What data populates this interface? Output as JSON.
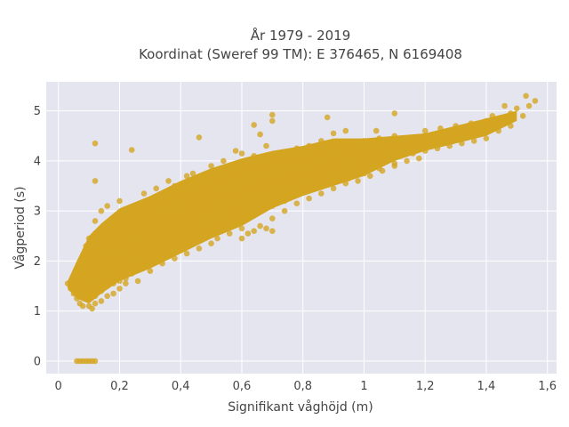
{
  "chart_data": {
    "type": "scatter",
    "title_line1": "År 1979 - 2019",
    "title_line2": "Koordinat (Sweref 99 TM): E 376465, N 6169408",
    "xlabel": "Signifikant våghöjd (m)",
    "ylabel": "Vågperiod (s)",
    "xlim": [
      -0.04,
      1.63
    ],
    "ylim": [
      -0.25,
      5.58
    ],
    "x_ticks": [
      0,
      0.2,
      0.4,
      0.6,
      0.8,
      1,
      1.2,
      1.4,
      1.6
    ],
    "x_tick_labels": [
      "0",
      "0,2",
      "0,4",
      "0,6",
      "0,8",
      "1",
      "1,2",
      "1,4",
      "1,6"
    ],
    "y_ticks": [
      0,
      1,
      2,
      3,
      4,
      5
    ],
    "y_tick_labels": [
      "0",
      "1",
      "2",
      "3",
      "4",
      "5"
    ],
    "grid": true,
    "colors": {
      "marker": "#d4a520",
      "plot_bg": "#e5e5f0",
      "grid": "#ffffff",
      "text": "#444444"
    },
    "points": [
      [
        0.06,
        0.0
      ],
      [
        0.07,
        0.0
      ],
      [
        0.08,
        0.0
      ],
      [
        0.09,
        0.0
      ],
      [
        0.1,
        0.0
      ],
      [
        0.11,
        0.0
      ],
      [
        0.12,
        0.0
      ],
      [
        0.03,
        1.55
      ],
      [
        0.04,
        1.45
      ],
      [
        0.05,
        1.35
      ],
      [
        0.06,
        1.25
      ],
      [
        0.07,
        1.15
      ],
      [
        0.08,
        1.1
      ],
      [
        0.1,
        1.1
      ],
      [
        0.11,
        1.05
      ],
      [
        0.05,
        1.6
      ],
      [
        0.06,
        1.8
      ],
      [
        0.07,
        1.95
      ],
      [
        0.08,
        2.1
      ],
      [
        0.09,
        2.3
      ],
      [
        0.1,
        2.45
      ],
      [
        0.12,
        2.55
      ],
      [
        0.14,
        2.6
      ],
      [
        0.08,
        1.5
      ],
      [
        0.1,
        1.4
      ],
      [
        0.12,
        1.3
      ],
      [
        0.14,
        1.4
      ],
      [
        0.16,
        1.5
      ],
      [
        0.18,
        1.55
      ],
      [
        0.2,
        1.6
      ],
      [
        0.22,
        1.65
      ],
      [
        0.08,
        1.75
      ],
      [
        0.1,
        1.7
      ],
      [
        0.12,
        1.85
      ],
      [
        0.14,
        2.0
      ],
      [
        0.1,
        2.0
      ],
      [
        0.12,
        2.2
      ],
      [
        0.14,
        2.3
      ],
      [
        0.16,
        2.45
      ],
      [
        0.16,
        1.9
      ],
      [
        0.18,
        2.1
      ],
      [
        0.2,
        2.3
      ],
      [
        0.22,
        2.5
      ],
      [
        0.24,
        2.65
      ],
      [
        0.26,
        2.8
      ],
      [
        0.28,
        2.9
      ],
      [
        0.2,
        2.75
      ],
      [
        0.18,
        2.6
      ],
      [
        0.22,
        2.9
      ],
      [
        0.25,
        3.0
      ],
      [
        0.28,
        3.05
      ],
      [
        0.3,
        3.1
      ],
      [
        0.32,
        3.15
      ],
      [
        0.35,
        3.2
      ],
      [
        0.38,
        3.3
      ],
      [
        0.18,
        1.8
      ],
      [
        0.2,
        1.95
      ],
      [
        0.22,
        2.05
      ],
      [
        0.24,
        2.15
      ],
      [
        0.26,
        2.25
      ],
      [
        0.28,
        2.35
      ],
      [
        0.3,
        2.45
      ],
      [
        0.32,
        2.55
      ],
      [
        0.24,
        1.75
      ],
      [
        0.26,
        1.85
      ],
      [
        0.28,
        1.95
      ],
      [
        0.3,
        2.0
      ],
      [
        0.32,
        2.1
      ],
      [
        0.34,
        2.2
      ],
      [
        0.36,
        2.3
      ],
      [
        0.38,
        2.4
      ],
      [
        0.3,
        1.8
      ],
      [
        0.34,
        1.95
      ],
      [
        0.38,
        2.05
      ],
      [
        0.42,
        2.15
      ],
      [
        0.46,
        2.25
      ],
      [
        0.5,
        2.35
      ],
      [
        0.3,
        2.7
      ],
      [
        0.34,
        2.8
      ],
      [
        0.4,
        2.5
      ],
      [
        0.42,
        2.65
      ],
      [
        0.44,
        2.8
      ],
      [
        0.46,
        2.95
      ],
      [
        0.48,
        3.1
      ],
      [
        0.5,
        3.2
      ],
      [
        0.52,
        3.3
      ],
      [
        0.36,
        2.6
      ],
      [
        0.4,
        2.9
      ],
      [
        0.42,
        3.05
      ],
      [
        0.44,
        3.15
      ],
      [
        0.46,
        3.3
      ],
      [
        0.48,
        3.4
      ],
      [
        0.5,
        3.5
      ],
      [
        0.52,
        3.55
      ],
      [
        0.54,
        3.6
      ],
      [
        0.45,
        2.45
      ],
      [
        0.5,
        2.6
      ],
      [
        0.54,
        2.7
      ],
      [
        0.58,
        2.8
      ],
      [
        0.62,
        2.9
      ],
      [
        0.66,
        3.0
      ],
      [
        0.7,
        3.1
      ],
      [
        0.74,
        3.2
      ],
      [
        0.52,
        2.45
      ],
      [
        0.56,
        2.55
      ],
      [
        0.6,
        2.65
      ],
      [
        0.64,
        2.6
      ],
      [
        0.68,
        2.65
      ],
      [
        0.7,
        2.6
      ],
      [
        0.56,
        3.0
      ],
      [
        0.6,
        3.1
      ],
      [
        0.56,
        3.7
      ],
      [
        0.6,
        3.8
      ],
      [
        0.64,
        3.85
      ],
      [
        0.68,
        3.9
      ],
      [
        0.72,
        3.95
      ],
      [
        0.76,
        4.0
      ],
      [
        0.8,
        4.05
      ],
      [
        0.84,
        4.1
      ],
      [
        0.58,
        3.3
      ],
      [
        0.62,
        3.4
      ],
      [
        0.66,
        3.5
      ],
      [
        0.7,
        3.6
      ],
      [
        0.74,
        3.65
      ],
      [
        0.78,
        3.7
      ],
      [
        0.82,
        3.75
      ],
      [
        0.86,
        3.8
      ],
      [
        0.75,
        3.35
      ],
      [
        0.8,
        3.45
      ],
      [
        0.85,
        3.55
      ],
      [
        0.9,
        3.6
      ],
      [
        0.95,
        3.65
      ],
      [
        1.0,
        3.75
      ],
      [
        1.05,
        3.85
      ],
      [
        1.1,
        3.95
      ],
      [
        0.88,
        3.9
      ],
      [
        0.92,
        4.0
      ],
      [
        0.96,
        4.1
      ],
      [
        1.0,
        4.15
      ],
      [
        1.04,
        4.2
      ],
      [
        1.08,
        4.25
      ],
      [
        1.12,
        4.3
      ],
      [
        1.16,
        4.35
      ],
      [
        0.9,
        4.3
      ],
      [
        0.95,
        4.35
      ],
      [
        1.0,
        4.4
      ],
      [
        1.05,
        4.45
      ],
      [
        1.1,
        4.5
      ],
      [
        1.15,
        4.45
      ],
      [
        1.2,
        4.5
      ],
      [
        1.25,
        4.55
      ],
      [
        1.12,
        4.1
      ],
      [
        1.16,
        4.15
      ],
      [
        1.2,
        4.2
      ],
      [
        1.24,
        4.25
      ],
      [
        1.28,
        4.3
      ],
      [
        1.32,
        4.35
      ],
      [
        1.36,
        4.4
      ],
      [
        1.4,
        4.45
      ],
      [
        1.2,
        4.6
      ],
      [
        1.25,
        4.65
      ],
      [
        1.3,
        4.7
      ],
      [
        1.35,
        4.75
      ],
      [
        1.4,
        4.8
      ],
      [
        1.45,
        4.85
      ],
      [
        1.48,
        4.95
      ],
      [
        1.5,
        5.05
      ],
      [
        1.44,
        4.6
      ],
      [
        1.48,
        4.7
      ],
      [
        1.52,
        4.9
      ],
      [
        1.54,
        5.1
      ],
      [
        1.53,
        5.3
      ],
      [
        1.56,
        5.2
      ],
      [
        1.46,
        5.1
      ],
      [
        1.42,
        4.9
      ],
      [
        1.3,
        4.5
      ],
      [
        1.34,
        4.6
      ],
      [
        1.38,
        4.55
      ],
      [
        1.26,
        4.4
      ],
      [
        1.22,
        4.35
      ],
      [
        1.18,
        4.4
      ],
      [
        0.98,
        3.9
      ],
      [
        1.02,
        4.0
      ],
      [
        0.12,
        4.35
      ],
      [
        0.24,
        4.22
      ],
      [
        0.12,
        3.6
      ],
      [
        0.46,
        4.47
      ],
      [
        0.66,
        4.53
      ],
      [
        0.7,
        4.92
      ],
      [
        0.7,
        4.8
      ],
      [
        0.64,
        4.72
      ],
      [
        0.88,
        4.87
      ],
      [
        1.1,
        4.95
      ],
      [
        1.04,
        4.6
      ],
      [
        0.68,
        4.3
      ],
      [
        0.6,
        4.15
      ],
      [
        0.5,
        3.9
      ],
      [
        0.42,
        3.7
      ],
      [
        0.38,
        3.5
      ],
      [
        0.2,
        3.2
      ],
      [
        0.14,
        3.0
      ],
      [
        0.12,
        2.8
      ],
      [
        0.16,
        3.1
      ],
      [
        0.28,
        3.35
      ],
      [
        0.32,
        3.45
      ],
      [
        0.36,
        3.6
      ],
      [
        0.44,
        3.75
      ],
      [
        0.54,
        4.0
      ],
      [
        0.58,
        4.2
      ],
      [
        0.64,
        4.1
      ],
      [
        0.78,
        4.25
      ],
      [
        0.82,
        4.3
      ],
      [
        0.86,
        4.4
      ],
      [
        0.9,
        4.55
      ],
      [
        0.94,
        4.6
      ],
      [
        0.1,
        1.25
      ],
      [
        0.12,
        1.15
      ],
      [
        0.14,
        1.2
      ],
      [
        0.16,
        1.3
      ],
      [
        0.18,
        1.35
      ],
      [
        0.2,
        1.45
      ],
      [
        0.22,
        1.55
      ],
      [
        0.26,
        1.6
      ],
      [
        0.6,
        2.45
      ],
      [
        0.62,
        2.55
      ],
      [
        0.66,
        2.7
      ],
      [
        0.7,
        2.85
      ],
      [
        0.74,
        3.0
      ],
      [
        0.78,
        3.15
      ],
      [
        0.82,
        3.25
      ],
      [
        0.86,
        3.35
      ],
      [
        0.9,
        3.45
      ],
      [
        0.94,
        3.55
      ],
      [
        0.98,
        3.6
      ],
      [
        1.02,
        3.7
      ],
      [
        1.06,
        3.8
      ],
      [
        1.1,
        3.9
      ],
      [
        1.14,
        4.0
      ],
      [
        1.18,
        4.05
      ],
      [
        0.3,
        2.2
      ],
      [
        0.32,
        2.35
      ],
      [
        0.34,
        2.5
      ],
      [
        0.36,
        2.45
      ],
      [
        0.38,
        2.6
      ],
      [
        0.4,
        2.7
      ],
      [
        0.42,
        2.4
      ],
      [
        0.44,
        2.55
      ]
    ]
  }
}
